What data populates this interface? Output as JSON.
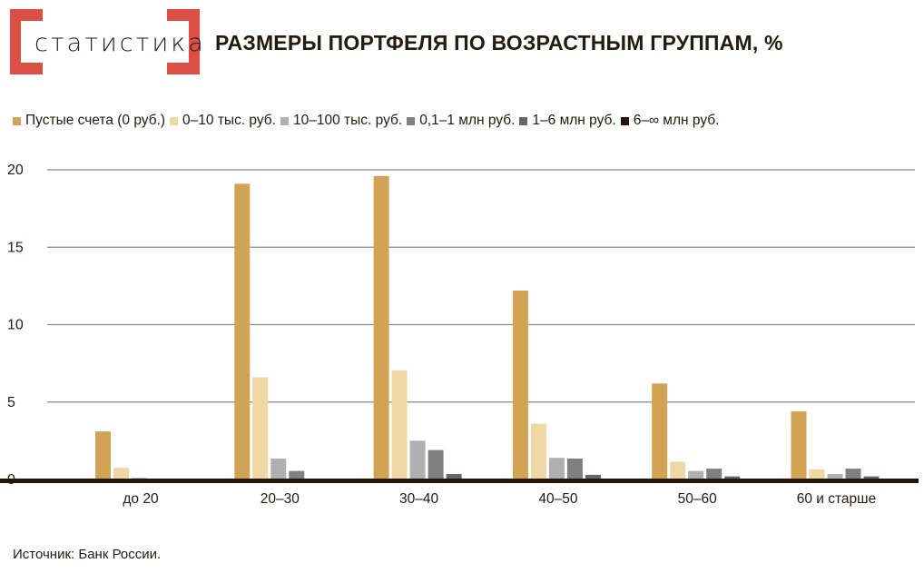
{
  "logo": {
    "text": "статистика",
    "color": "#dc4f45"
  },
  "title": "РАЗМЕРЫ ПОРТФЕЛЯ ПО ВОЗРАСТНЫМ ГРУППАМ, %",
  "source": "Источник: Банк России.",
  "chart_data": {
    "type": "bar",
    "title": "РАЗМЕРЫ ПОРТФЕЛЯ ПО ВОЗРАСТНЫМ ГРУППАМ, %",
    "categories": [
      "до 20",
      "20–30",
      "30–40",
      "40–50",
      "50–60",
      "60 и старше"
    ],
    "ylim": [
      0,
      20
    ],
    "yticks": [
      "0",
      "5",
      "10",
      "15",
      "20"
    ],
    "grid": true,
    "legend_position": "top-left",
    "series": [
      {
        "name": "Пустые счета (0 руб.)",
        "color": "#d1a355",
        "values": [
          3.1,
          19.1,
          19.6,
          12.2,
          6.2,
          4.4
        ]
      },
      {
        "name": "0–10 тыс. руб.",
        "color": "#efd8a4",
        "values": [
          0.75,
          6.6,
          7.05,
          3.6,
          1.15,
          0.65
        ]
      },
      {
        "name": "10–100 тыс. руб.",
        "color": "#b0b0b0",
        "values": [
          0.1,
          1.35,
          2.5,
          1.4,
          0.55,
          0.35
        ]
      },
      {
        "name": "0,1–1 млн руб.",
        "color": "#808080",
        "values": [
          0,
          0.55,
          1.9,
          1.35,
          0.7,
          0.7
        ]
      },
      {
        "name": "1–6 млн руб.",
        "color": "#666666",
        "values": [
          0,
          0,
          0.35,
          0.3,
          0.2,
          0.2
        ]
      },
      {
        "name": "6–∞ млн руб.",
        "color": "#231508",
        "values": [
          0,
          0,
          0,
          0,
          0,
          0
        ]
      }
    ]
  }
}
